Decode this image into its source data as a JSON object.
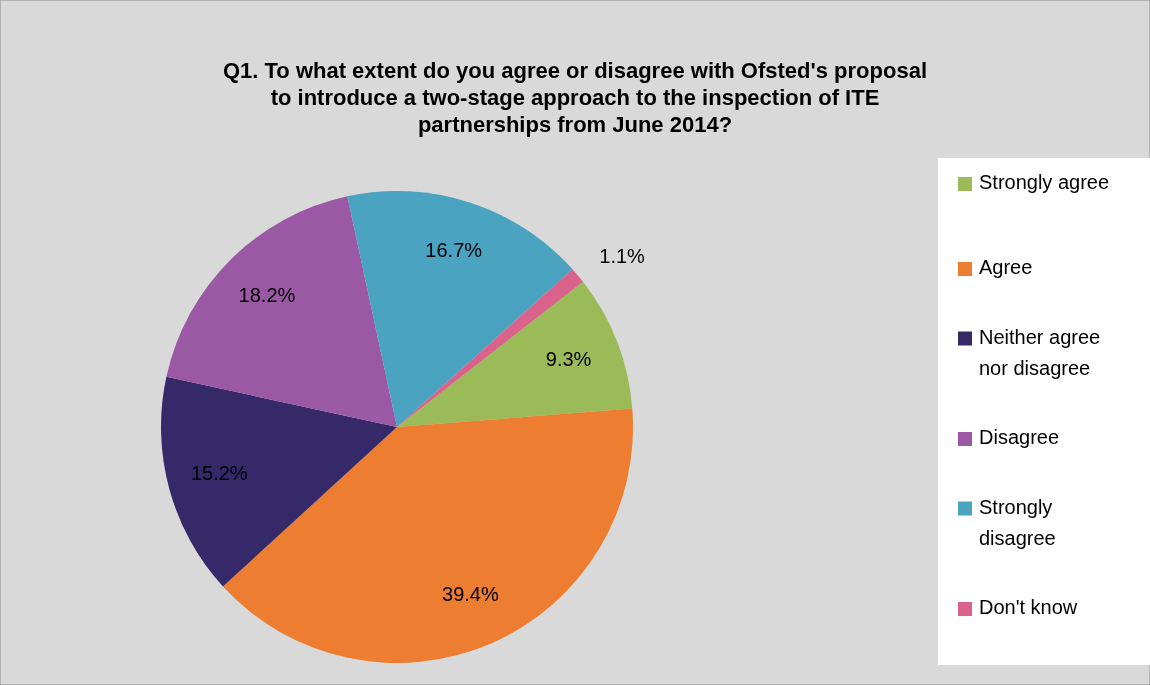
{
  "chart_data": {
    "type": "pie",
    "title": "Q1. To what extent do you agree or disagree with Ofsted's proposal\nto introduce a two-stage approach to the inspection of ITE\npartnerships from June 2014?",
    "categories": [
      "Strongly agree",
      "Agree",
      "Neither agree nor disagree",
      "Disagree",
      "Strongly disagree",
      "Don't know"
    ],
    "values": [
      9.3,
      39.4,
      15.2,
      18.2,
      16.7,
      1.1
    ],
    "value_labels": [
      "9.3%",
      "39.4%",
      "15.2%",
      "18.2%",
      "16.7%",
      "1.1%"
    ],
    "colors": [
      "#9bbb59",
      "#ed7d31",
      "#35296a",
      "#9b59a5",
      "#4aa3c1",
      "#d9638b"
    ],
    "legend": "right"
  }
}
